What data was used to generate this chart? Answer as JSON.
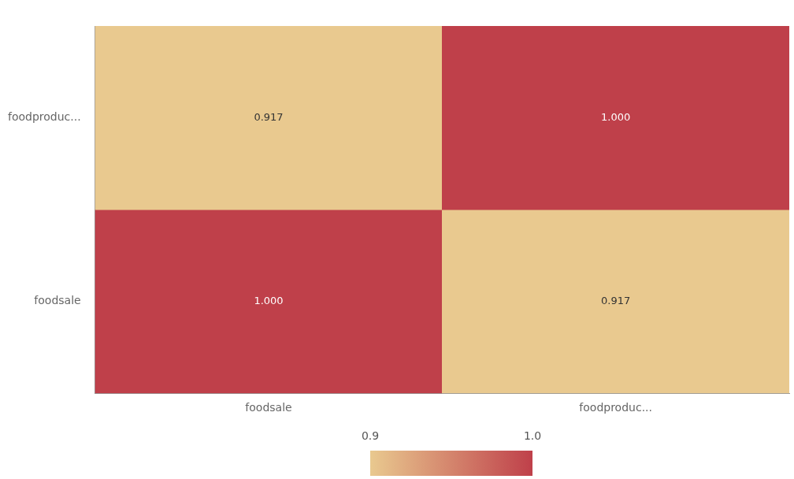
{
  "chart_data": {
    "type": "heatmap",
    "categories": [
      "foodsale",
      "foodproduc..."
    ],
    "y_categories": [
      "foodproduc...",
      "foodsale"
    ],
    "cells": [
      [
        0.917,
        1.0
      ],
      [
        1.0,
        0.917
      ]
    ],
    "cell_labels": [
      [
        "0.917",
        "1.000"
      ],
      [
        "1.000",
        "0.917"
      ]
    ],
    "colors": [
      "#e9c98f",
      "#bf404a"
    ],
    "clim": [
      0.917,
      1.0
    ],
    "cticks": [
      {
        "value": 0.917,
        "label": "0.9"
      },
      {
        "value": 1.0,
        "label": "1.0"
      }
    ]
  }
}
